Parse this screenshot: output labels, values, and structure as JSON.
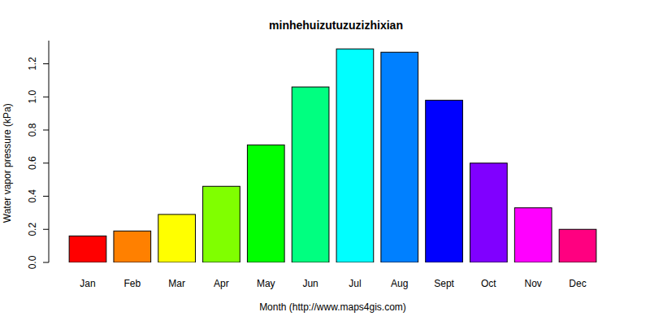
{
  "chart_data": {
    "type": "bar",
    "title": "minhehuizutuzuzizhixian",
    "x_label": "Month (http://www.maps4gis.com)",
    "y_label": "Water vapor pressure (kPa)",
    "categories": [
      "Jan",
      "Feb",
      "Mar",
      "Apr",
      "May",
      "Jun",
      "Jul",
      "Aug",
      "Sept",
      "Oct",
      "Nov",
      "Dec"
    ],
    "values": [
      0.16,
      0.19,
      0.29,
      0.46,
      0.71,
      1.06,
      1.29,
      1.27,
      0.98,
      0.6,
      0.33,
      0.2
    ],
    "colors": [
      "#FF0000",
      "#FF8000",
      "#FFFF00",
      "#80FF00",
      "#00FF00",
      "#00FF80",
      "#00FFFF",
      "#0080FF",
      "#0000FF",
      "#8000FF",
      "#FF00FF",
      "#FF0080"
    ],
    "ylim": [
      0,
      1.34
    ],
    "yticks": [
      {
        "value": 0,
        "label": "0.0"
      },
      0.2,
      0.4,
      0.6,
      0.8,
      {
        "value": 1,
        "label": "1.0"
      },
      1.2
    ],
    "grid": false
  }
}
